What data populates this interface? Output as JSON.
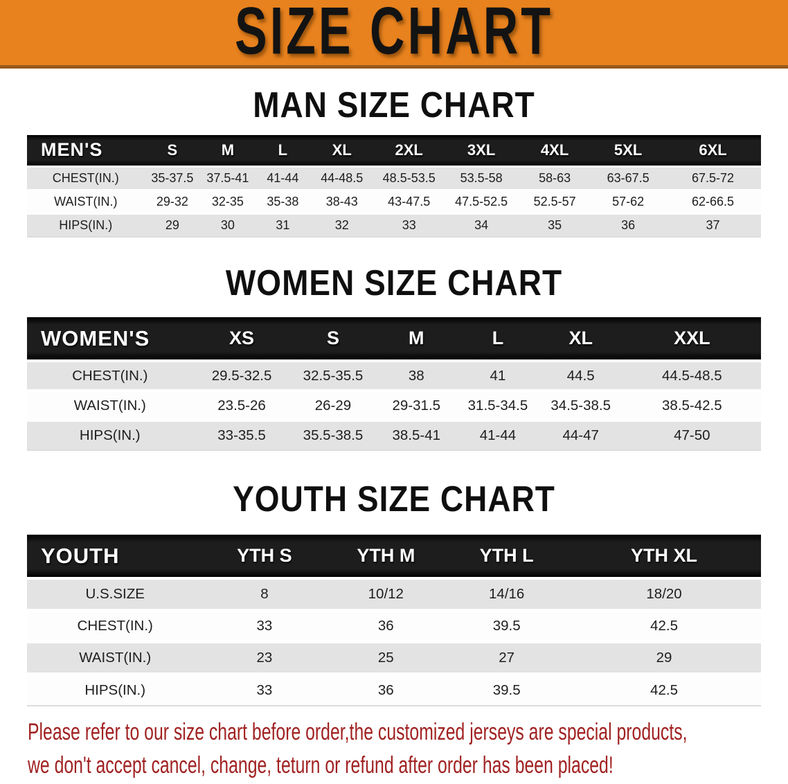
{
  "banner": {
    "title": "SIZE CHART",
    "bg_color": "#e8821e",
    "text_color": "#131313"
  },
  "sections": [
    {
      "heading": "MAN SIZE CHART",
      "table": {
        "header_label": "MEN'S",
        "sizes": [
          "S",
          "M",
          "L",
          "XL",
          "2XL",
          "3XL",
          "4XL",
          "5XL",
          "6XL"
        ],
        "col_widths_pct": [
          16,
          7.6,
          7.5,
          7.5,
          8.6,
          9.7,
          10,
          10,
          10,
          13.1
        ],
        "rows": [
          {
            "label": "CHEST(IN.)",
            "values": [
              "35-37.5",
              "37.5-41",
              "41-44",
              "44-48.5",
              "48.5-53.5",
              "53.5-58",
              "58-63",
              "63-67.5",
              "67.5-72"
            ]
          },
          {
            "label": "WAIST(IN.)",
            "values": [
              "29-32",
              "32-35",
              "35-38",
              "38-43",
              "43-47.5",
              "47.5-52.5",
              "52.5-57",
              "57-62",
              "62-66.5"
            ]
          },
          {
            "label": "HIPS(IN.)",
            "values": [
              "29",
              "30",
              "31",
              "32",
              "33",
              "34",
              "35",
              "36",
              "37"
            ]
          }
        ]
      }
    },
    {
      "heading": "WOMEN SIZE CHART",
      "table": {
        "header_label": "WOMEN'S",
        "sizes": [
          "XS",
          "S",
          "M",
          "L",
          "XL",
          "XXL"
        ],
        "col_widths_pct": [
          22.6,
          13.3,
          11.6,
          11.1,
          11.1,
          11.5,
          18.8
        ],
        "rows": [
          {
            "label": "CHEST(IN.)",
            "values": [
              "29.5-32.5",
              "32.5-35.5",
              "38",
              "41",
              "44.5",
              "44.5-48.5"
            ]
          },
          {
            "label": "WAIST(IN.)",
            "values": [
              "23.5-26",
              "26-29",
              "29-31.5",
              "31.5-34.5",
              "34.5-38.5",
              "38.5-42.5"
            ]
          },
          {
            "label": "HIPS(IN.)",
            "values": [
              "33-35.5",
              "35.5-38.5",
              "38.5-41",
              "41-44",
              "44-47",
              "47-50"
            ]
          }
        ]
      }
    },
    {
      "heading": "YOUTH SIZE CHART",
      "table": {
        "header_label": "YOUTH",
        "sizes": [
          "YTH S",
          "YTH M",
          "YTH L",
          "YTH XL"
        ],
        "col_widths_pct": [
          24,
          16.7,
          16.4,
          16.5,
          26.4
        ],
        "rows": [
          {
            "label": "U.S.SIZE",
            "values": [
              "8",
              "10/12",
              "14/16",
              "18/20"
            ]
          },
          {
            "label": "CHEST(IN.)",
            "values": [
              "33",
              "36",
              "39.5",
              "42.5"
            ]
          },
          {
            "label": "WAIST(IN.)",
            "values": [
              "23",
              "25",
              "27",
              "29"
            ]
          },
          {
            "label": "HIPS(IN.)",
            "values": [
              "33",
              "36",
              "39.5",
              "42.5"
            ]
          }
        ]
      }
    }
  ],
  "disclaimer": {
    "lines": [
      "Please refer to our size chart before order,the customized jerseys are special products,",
      "we don't accept cancel, change, teturn or refund after order has been placed!"
    ],
    "text_color": "#a12222"
  }
}
